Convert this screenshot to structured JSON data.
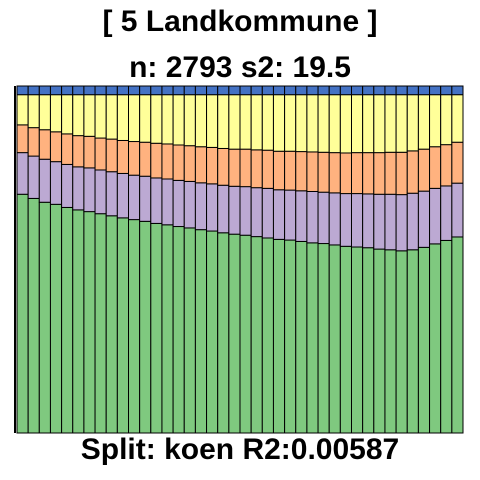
{
  "header": {
    "title": "[ 5 Landkommune ]",
    "subtitle": "n: 2793 s2: 19.5"
  },
  "footer": {
    "split_text": "Split: koen R2:0.00587"
  },
  "colors": {
    "blue": "#4472C4",
    "yellow": "#FFFF99",
    "orange": "#FFB27F",
    "purple": "#BCA9D3",
    "green": "#7FC97F",
    "outline": "#000000"
  },
  "chart_data": {
    "type": "bar",
    "stacked": true,
    "normalized": true,
    "ylim": [
      0,
      1
    ],
    "x": [
      1,
      2,
      3,
      4,
      5,
      6,
      7,
      8,
      9,
      10,
      11,
      12,
      13,
      14,
      15,
      16,
      17,
      18,
      19,
      20,
      21,
      22,
      23,
      24,
      25,
      26,
      27,
      28,
      29,
      30,
      31,
      32,
      33,
      34,
      35,
      36,
      37,
      38,
      39,
      40
    ],
    "series": [
      {
        "color": "green",
        "values": [
          0.688,
          0.676,
          0.665,
          0.659,
          0.65,
          0.643,
          0.638,
          0.632,
          0.626,
          0.62,
          0.615,
          0.61,
          0.604,
          0.6,
          0.595,
          0.591,
          0.586,
          0.582,
          0.577,
          0.573,
          0.57,
          0.566,
          0.562,
          0.558,
          0.556,
          0.552,
          0.548,
          0.546,
          0.542,
          0.538,
          0.536,
          0.534,
          0.53,
          0.528,
          0.525,
          0.528,
          0.535,
          0.545,
          0.555,
          0.565
        ]
      },
      {
        "color": "purple",
        "values": [
          0.12,
          0.122,
          0.124,
          0.123,
          0.124,
          0.124,
          0.126,
          0.126,
          0.127,
          0.128,
          0.128,
          0.13,
          0.131,
          0.132,
          0.133,
          0.134,
          0.135,
          0.136,
          0.137,
          0.138,
          0.14,
          0.141,
          0.143,
          0.143,
          0.144,
          0.146,
          0.148,
          0.148,
          0.15,
          0.152,
          0.154,
          0.155,
          0.158,
          0.16,
          0.162,
          0.163,
          0.162,
          0.16,
          0.157,
          0.155
        ]
      },
      {
        "color": "orange",
        "values": [
          0.08,
          0.082,
          0.085,
          0.086,
          0.088,
          0.09,
          0.091,
          0.092,
          0.094,
          0.095,
          0.097,
          0.098,
          0.1,
          0.101,
          0.102,
          0.103,
          0.104,
          0.105,
          0.106,
          0.107,
          0.108,
          0.109,
          0.11,
          0.111,
          0.112,
          0.113,
          0.114,
          0.115,
          0.116,
          0.117,
          0.118,
          0.119,
          0.12,
          0.121,
          0.122,
          0.122,
          0.121,
          0.12,
          0.119,
          0.118
        ]
      },
      {
        "color": "yellow",
        "values": [
          0.087,
          0.095,
          0.101,
          0.107,
          0.113,
          0.118,
          0.12,
          0.125,
          0.128,
          0.132,
          0.135,
          0.137,
          0.14,
          0.142,
          0.145,
          0.147,
          0.15,
          0.152,
          0.155,
          0.157,
          0.157,
          0.159,
          0.16,
          0.163,
          0.163,
          0.164,
          0.165,
          0.166,
          0.167,
          0.168,
          0.167,
          0.167,
          0.167,
          0.166,
          0.166,
          0.162,
          0.157,
          0.15,
          0.144,
          0.137
        ]
      },
      {
        "color": "blue",
        "values": [
          0.025,
          0.025,
          0.025,
          0.025,
          0.025,
          0.025,
          0.025,
          0.025,
          0.025,
          0.025,
          0.025,
          0.025,
          0.025,
          0.025,
          0.025,
          0.025,
          0.025,
          0.025,
          0.025,
          0.025,
          0.025,
          0.025,
          0.025,
          0.025,
          0.025,
          0.025,
          0.025,
          0.025,
          0.025,
          0.025,
          0.025,
          0.025,
          0.025,
          0.025,
          0.025,
          0.025,
          0.025,
          0.025,
          0.025,
          0.025
        ]
      }
    ]
  }
}
